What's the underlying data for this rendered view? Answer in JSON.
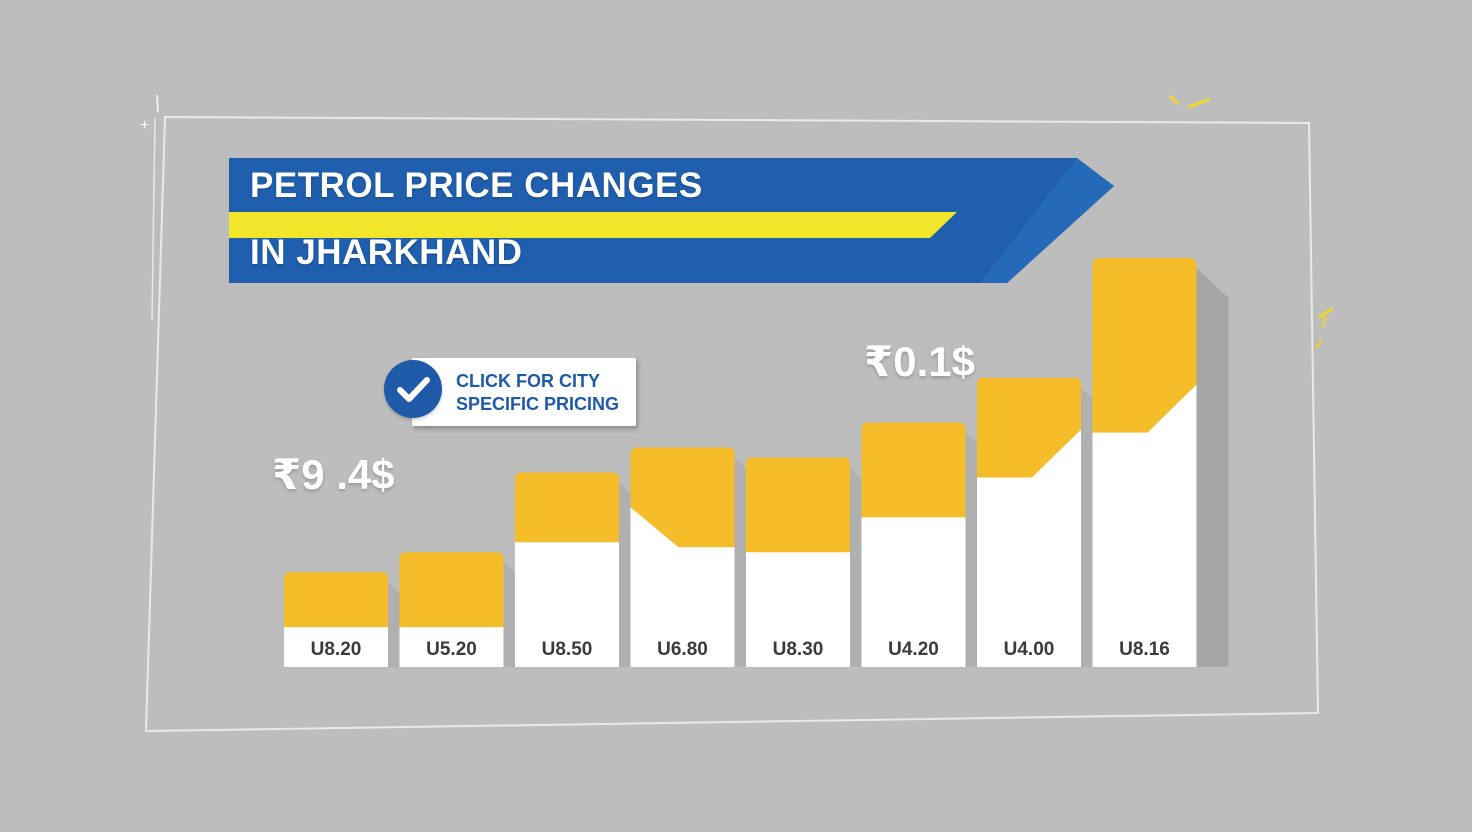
{
  "title": {
    "line1": "PETROL PRICE CHANGES",
    "line2": "IN JHARKHAND"
  },
  "cta": {
    "label": "CLICK FOR CITY\nSPECIFIC PRICING",
    "icon": "check-icon"
  },
  "callouts": {
    "left": "₹9 .4$",
    "right": "₹0.1$"
  },
  "colors": {
    "background": "#bdbdbd",
    "banner_blue": "#1f5fae",
    "banner_stripe": "#f2e62a",
    "bar_gold": "#f5bd2a",
    "bar_white": "#ffffff",
    "bar_shadow": "#a6a6a6"
  },
  "chart_data": {
    "type": "bar",
    "categories": [
      "U8.20",
      "U5.20",
      "U8.50",
      "U6.80",
      "U8.30",
      "U4.20",
      "U4.00",
      "U8.16"
    ],
    "values": [
      19,
      23,
      39,
      44,
      42,
      49,
      58,
      82
    ],
    "white_portion": [
      8,
      8,
      25,
      24,
      23,
      30,
      38,
      47
    ],
    "ylim": [
      0,
      85
    ],
    "grid": false,
    "legend": "none"
  }
}
